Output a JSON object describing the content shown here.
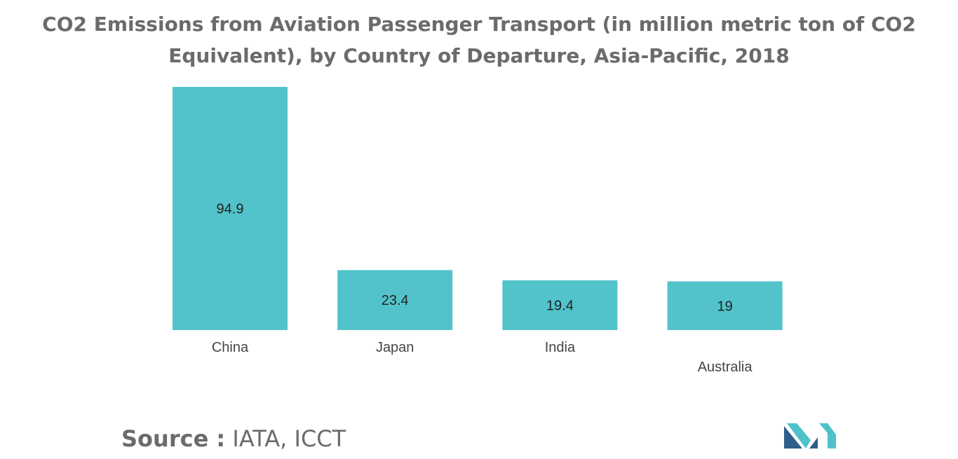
{
  "chart_data": {
    "type": "bar",
    "title": "CO2 Emissions from Aviation Passenger Transport (in million metric ton of CO2 Equivalent), by Country of Departure, Asia-Pacific, 2018",
    "categories": [
      "China",
      "Japan",
      "India",
      "Australia"
    ],
    "values": [
      94.9,
      23.4,
      19.4,
      19
    ],
    "value_labels": [
      "94.9",
      "23.4",
      "19.4",
      "19"
    ],
    "bar_color": "#52c3cb",
    "xlabel": "",
    "ylabel": "",
    "grid": false,
    "legend": "none"
  },
  "title_lines": [
    "CO2 Emissions from Aviation Passenger Transport (in million metric ton of CO2",
    "Equivalent), by Country of Departure, Asia-Pacific, 2018"
  ],
  "source": {
    "label": "Source :",
    "text": "IATA, ICCT"
  },
  "logo": {
    "colors": [
      "#2d5f8b",
      "#4fc1c9"
    ]
  }
}
